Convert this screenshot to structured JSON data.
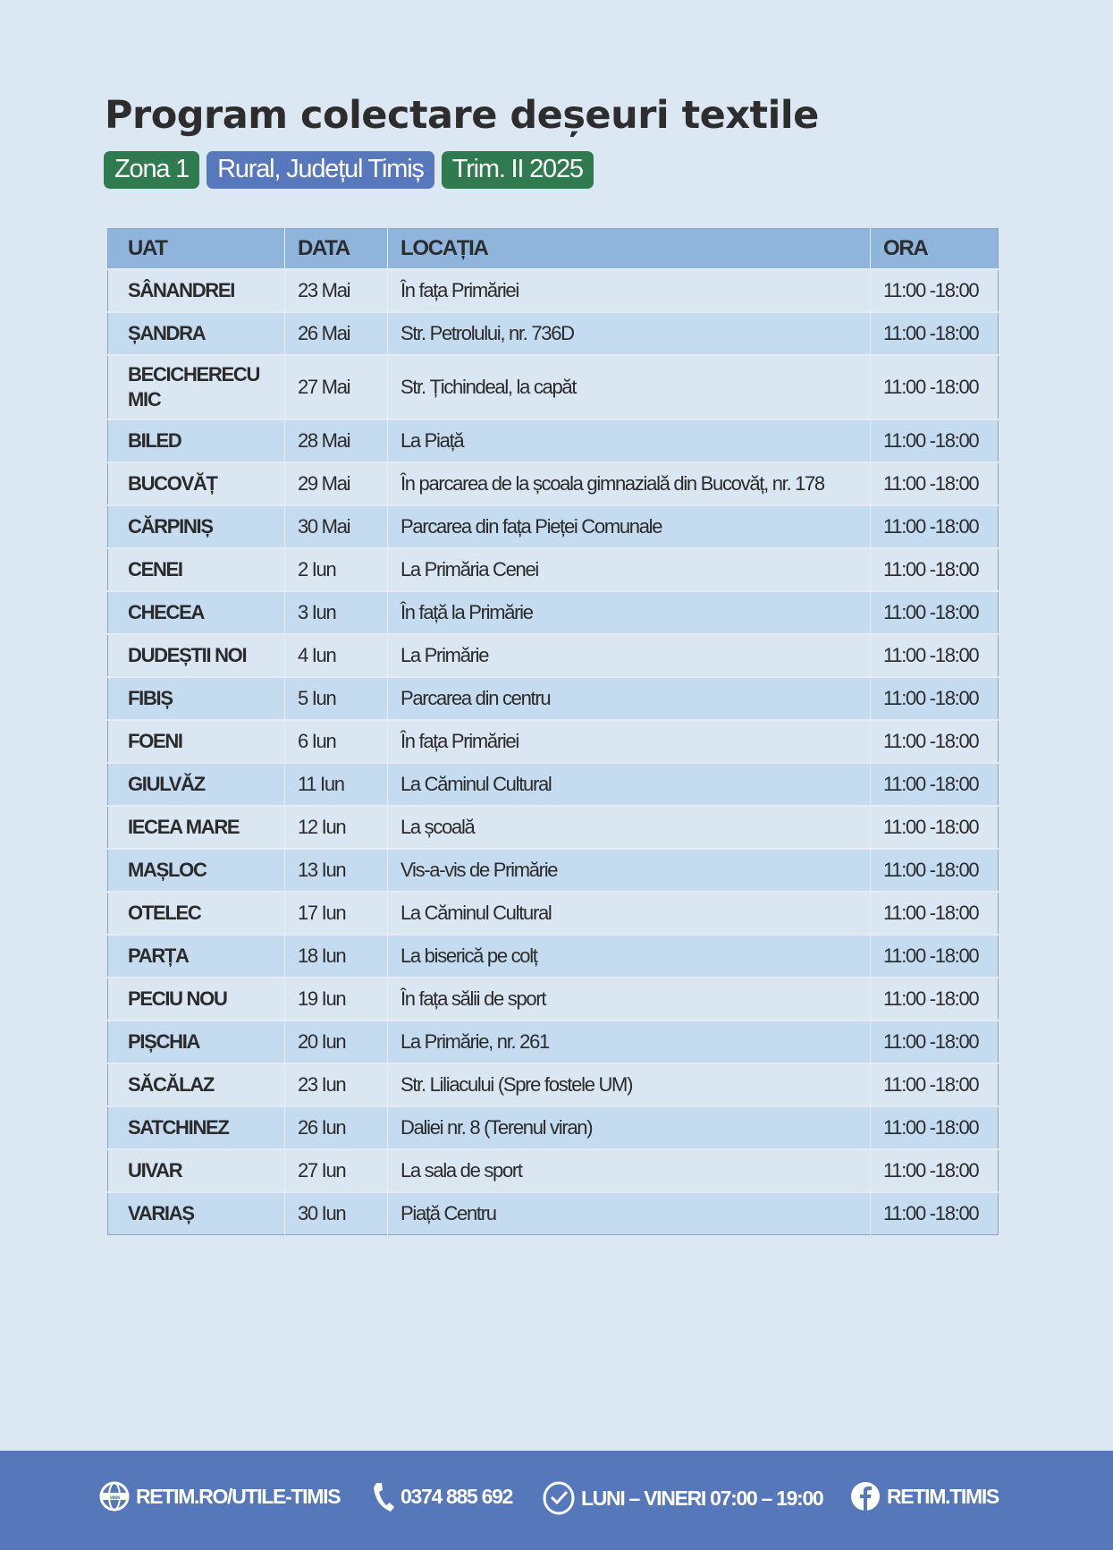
{
  "title": "Program colectare deșeuri textile",
  "badges": [
    "Zona 1",
    "Rural, Județul Timiș",
    "Trim. II 2025"
  ],
  "colors": {
    "green_badge": "#2f7a4e",
    "blue_badge": "#5878bd",
    "header": "#8fb5dc",
    "footer": "#5677b9"
  },
  "table": {
    "headers": [
      "UAT",
      "DATA",
      "LOCAȚIA",
      "ORA"
    ],
    "rows": [
      [
        "SÂNANDREI",
        "23 Mai",
        "În fața Primăriei",
        "11:00 -18:00"
      ],
      [
        "ȘANDRA",
        "26 Mai",
        "Str. Petrolului, nr. 736D",
        "11:00 -18:00"
      ],
      [
        "BECICHERECU MIC",
        "27 Mai",
        "Str. Țichindeal, la capăt",
        "11:00 -18:00"
      ],
      [
        "BILED",
        "28 Mai",
        "La Piață",
        "11:00 -18:00"
      ],
      [
        "BUCOVĂȚ",
        "29 Mai",
        "În parcarea de la școala gimnazială din Bucovăț, nr. 178",
        "11:00 -18:00"
      ],
      [
        "CĂRPINIȘ",
        "30 Mai",
        "Parcarea din fața Pieței Comunale",
        "11:00 -18:00"
      ],
      [
        "CENEI",
        "2 Iun",
        "La Primăria Cenei",
        "11:00 -18:00"
      ],
      [
        "CHECEA",
        "3 Iun",
        "În față la Primărie",
        "11:00 -18:00"
      ],
      [
        "DUDEȘTII NOI",
        "4 Iun",
        "La Primărie",
        "11:00 -18:00"
      ],
      [
        "FIBIȘ",
        "5 Iun",
        "Parcarea din centru",
        "11:00 -18:00"
      ],
      [
        "FOENI",
        "6 Iun",
        "În fața Primăriei",
        "11:00 -18:00"
      ],
      [
        "GIULVĂZ",
        "11 Iun",
        "La Căminul Cultural",
        "11:00 -18:00"
      ],
      [
        "IECEA MARE",
        "12 Iun",
        "La școală",
        "11:00 -18:00"
      ],
      [
        "MAȘLOC",
        "13 Iun",
        "Vis-a-vis de Primărie",
        "11:00 -18:00"
      ],
      [
        "OTELEC",
        "17 Iun",
        "La Căminul Cultural",
        "11:00 -18:00"
      ],
      [
        "PARȚA",
        "18 Iun",
        "La biserică pe colț",
        "11:00 -18:00"
      ],
      [
        "PECIU NOU",
        "19 Iun",
        "În fața sălii de sport",
        "11:00 -18:00"
      ],
      [
        "PIȘCHIA",
        "20 Iun",
        "La Primărie, nr. 261",
        "11:00 -18:00"
      ],
      [
        "SĂCĂLAZ",
        "23 Iun",
        "Str. Liliacului (Spre fostele UM)",
        "11:00 -18:00"
      ],
      [
        "SATCHINEZ",
        "26 Iun",
        "Daliei nr. 8 (Terenul viran)",
        "11:00 -18:00"
      ],
      [
        "UIVAR",
        "27 Iun",
        "La sala de sport",
        "11:00 -18:00"
      ],
      [
        "VARIAȘ",
        "30 Iun",
        "Piață Centru",
        "11:00 -18:00"
      ]
    ]
  },
  "footer": {
    "website": {
      "icon": "globe-www-icon",
      "text": "RETIM.RO/UTILE-TIMIS"
    },
    "phone": {
      "icon": "phone-icon",
      "text": "0374 885 692"
    },
    "hours": {
      "icon": "clock-check-icon",
      "text": "LUNI – VINERI 07:00 – 19:00"
    },
    "facebook": {
      "icon": "facebook-icon",
      "text": "RETIM.TIMIS"
    }
  }
}
